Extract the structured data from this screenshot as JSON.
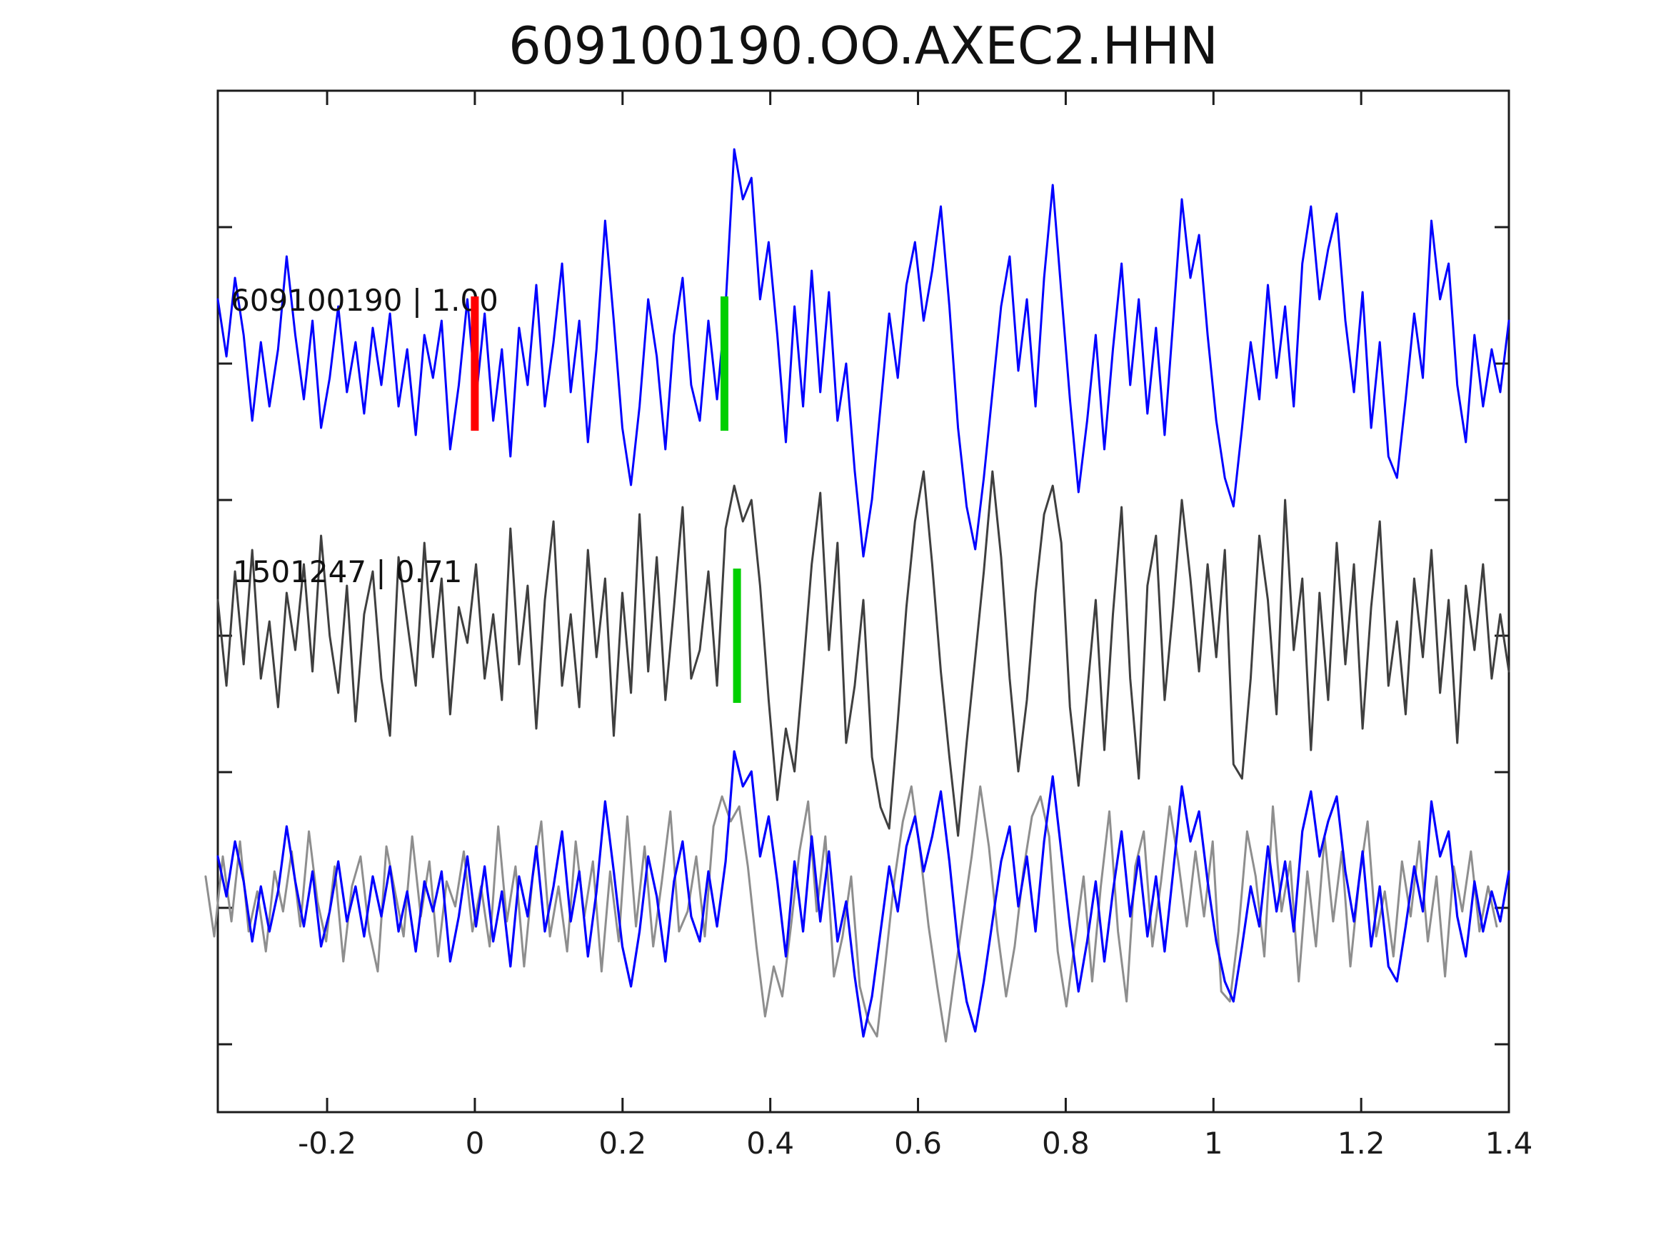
{
  "title": "609100190.OO.AXEC2.HHN",
  "colors": {
    "template_trace": "#0000ff",
    "detection_trace": "#3f3f3f",
    "overlay_detection_trace": "#8e8e8e",
    "pick_red": "#ff0000",
    "pick_green": "#00cf00",
    "axis": "#1c1c1c",
    "background": "#ffffff",
    "text": "#111111"
  },
  "chart_data": {
    "type": "line",
    "title": "609100190.OO.AXEC2.HHN",
    "xlabel": "",
    "ylabel": "",
    "grid": false,
    "legend": "none",
    "x_units": "seconds",
    "x_start_s": -0.348,
    "x_end_s": 1.4,
    "xlim": [
      -0.348,
      1.4
    ],
    "x_ticks": [
      -0.2,
      0,
      0.2,
      0.4,
      0.6,
      0.8,
      1,
      1.2,
      1.4
    ],
    "x_tick_labels": [
      "-0.2",
      "0",
      "0.2",
      "0.4",
      "0.6",
      "0.8",
      "1",
      "1.2",
      "1.4"
    ],
    "amplitude_units": "estimated_pixels",
    "traces": [
      {
        "id": "template",
        "name": "609100190",
        "cc": "1.00",
        "label": "609100190 | 1.00",
        "color_key": "template_trace",
        "picks": [
          {
            "t": 0.0,
            "color_key": "pick_red"
          },
          {
            "t": 0.338,
            "color_key": "pick_green"
          }
        ],
        "values": [
          90,
          10,
          120,
          40,
          -80,
          30,
          -60,
          20,
          150,
          40,
          -50,
          60,
          -90,
          -20,
          80,
          -40,
          30,
          -70,
          50,
          -30,
          70,
          -60,
          20,
          -100,
          40,
          -20,
          60,
          -120,
          -30,
          90,
          -50,
          70,
          -80,
          20,
          -130,
          50,
          -30,
          110,
          -60,
          30,
          140,
          -40,
          60,
          -110,
          20,
          200,
          60,
          -90,
          -170,
          -60,
          90,
          10,
          -120,
          40,
          120,
          -30,
          -80,
          60,
          -50,
          80,
          300,
          230,
          260,
          90,
          170,
          40,
          -110,
          80,
          -60,
          130,
          -40,
          100,
          -80,
          0,
          -150,
          -270,
          -190,
          -60,
          70,
          -20,
          110,
          170,
          60,
          130,
          220,
          80,
          -90,
          -200,
          -260,
          -160,
          -40,
          80,
          150,
          -10,
          90,
          -60,
          120,
          250,
          100,
          -50,
          -180,
          -80,
          40,
          -120,
          20,
          140,
          -30,
          90,
          -70,
          50,
          -100,
          60,
          230,
          120,
          180,
          40,
          -80,
          -160,
          -200,
          -90,
          30,
          -50,
          110,
          -20,
          80,
          -60,
          140,
          220,
          90,
          160,
          210,
          60,
          -40,
          100,
          -90,
          30,
          -130,
          -160,
          -50,
          70,
          -20,
          200,
          90,
          140,
          -30,
          -110,
          40,
          -60,
          20,
          -40,
          60
        ]
      },
      {
        "id": "detection",
        "name": "1501247",
        "cc": "0.71",
        "label": "1501247 | 0.71",
        "color_key": "detection_trace",
        "picks": [
          {
            "t": 0.355,
            "color_key": "pick_green"
          }
        ],
        "values": [
          50,
          -70,
          90,
          -40,
          120,
          -60,
          20,
          -100,
          60,
          -20,
          100,
          -50,
          140,
          0,
          -80,
          70,
          -120,
          30,
          90,
          -60,
          -140,
          110,
          20,
          -70,
          130,
          -30,
          80,
          -110,
          40,
          -10,
          100,
          -60,
          30,
          -90,
          150,
          -40,
          70,
          -130,
          50,
          160,
          -70,
          30,
          -100,
          120,
          -30,
          80,
          -140,
          60,
          -80,
          170,
          -50,
          110,
          -90,
          40,
          180,
          -60,
          -20,
          90,
          -70,
          150,
          210,
          160,
          190,
          70,
          -90,
          -230,
          -130,
          -190,
          -50,
          100,
          200,
          -20,
          130,
          -150,
          -70,
          50,
          -170,
          -240,
          -270,
          -120,
          40,
          160,
          230,
          100,
          -50,
          -170,
          -280,
          -150,
          -30,
          90,
          230,
          110,
          -60,
          -190,
          -90,
          60,
          170,
          210,
          130,
          -100,
          -210,
          -80,
          50,
          -160,
          30,
          180,
          -60,
          -200,
          70,
          140,
          -90,
          40,
          190,
          80,
          -50,
          100,
          -30,
          120,
          -180,
          -200,
          -60,
          140,
          50,
          -110,
          190,
          -20,
          80,
          -160,
          60,
          -90,
          130,
          -40,
          100,
          -130,
          40,
          160,
          -70,
          20,
          -110,
          80,
          -30,
          120,
          -80,
          50,
          -150,
          70,
          -20,
          100,
          -60,
          30,
          -50
        ]
      }
    ],
    "overlay": {
      "description": "bottom panel: detection trace aligned and superimposed on template trace",
      "components": [
        "detection",
        "template"
      ],
      "align_shift_s": -0.0165,
      "amplitude_scale": 0.7
    }
  }
}
